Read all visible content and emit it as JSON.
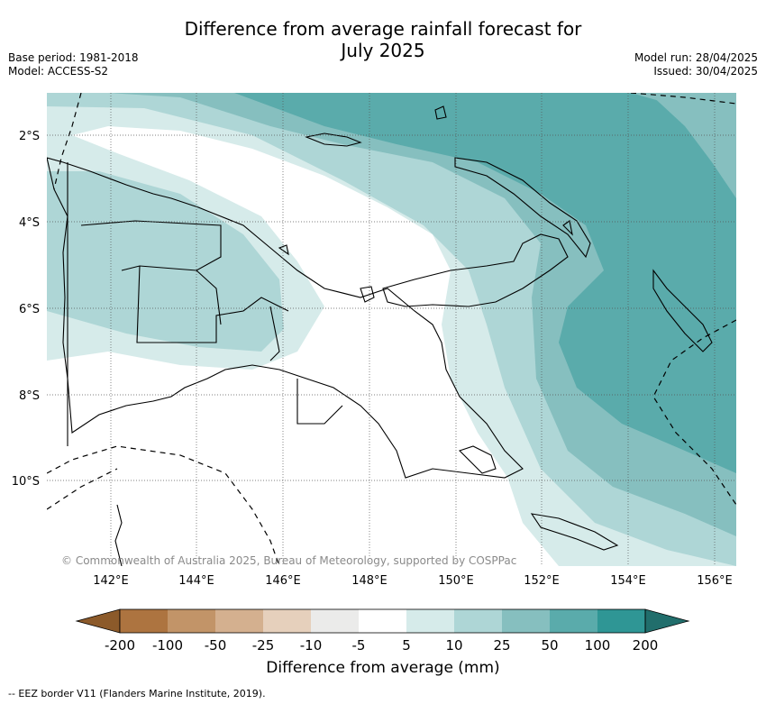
{
  "header": {
    "title_line1": "Difference from average rainfall forecast for",
    "title_line2": "July 2025",
    "base_period": "Base period: 1981-2018",
    "model": "Model: ACCESS-S2",
    "model_run": "Model run: 28/04/2025",
    "issued": "Issued: 30/04/2025"
  },
  "map": {
    "lat_labels": [
      "2°S",
      "4°S",
      "6°S",
      "8°S",
      "10°S"
    ],
    "lon_labels": [
      "142°E",
      "144°E",
      "146°E",
      "148°E",
      "150°E",
      "152°E",
      "154°E",
      "156°E"
    ],
    "copyright": "© Commonwealth of Australia 2025, Bureau of Meteorology, supported by COSPPac"
  },
  "colorbar": {
    "title": "Difference from average (mm)",
    "ticks": [
      "-200",
      "-100",
      "-50",
      "-25",
      "-10",
      "-5",
      "5",
      "10",
      "25",
      "50",
      "100",
      "200"
    ],
    "colors": [
      "#8c5a2a",
      "#ad7440",
      "#c29468",
      "#d4b08f",
      "#e6d0bc",
      "#ebebea",
      "#ffffff",
      "#d6ebea",
      "#aed6d6",
      "#86bfbf",
      "#5aabab",
      "#2f9695",
      "#216e6c"
    ]
  },
  "legend": {
    "eez_label": "-- EEZ border V11 (Flanders Marine Institute, 2019)."
  }
}
